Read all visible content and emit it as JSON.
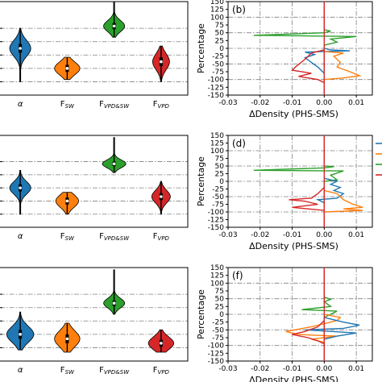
{
  "colors": {
    "blue": "#1f77b4",
    "orange": "#ff7f0e",
    "green": "#2ca02c",
    "red": "#d62728"
  },
  "chart_data": [
    {
      "type": "violin",
      "panel": "a",
      "categories": [
        {
          "main": "α",
          "sub": ""
        },
        {
          "main": "F",
          "sub": "SW"
        },
        {
          "main": "F",
          "sub": "VPD&SW"
        },
        {
          "main": "F",
          "sub": "VPD"
        }
      ],
      "series": [
        {
          "median": -0.15,
          "q1": -0.25,
          "q3": -0.05,
          "min": -0.9,
          "max": 0.3,
          "width": 0.25
        },
        {
          "median": -0.6,
          "q1": -0.68,
          "q3": -0.52,
          "min": -0.85,
          "max": -0.35,
          "width": 0.3
        },
        {
          "median": 0.35,
          "q1": 0.28,
          "q3": 0.42,
          "min": 0.1,
          "max": 0.9,
          "width": 0.25
        },
        {
          "median": -0.45,
          "q1": -0.55,
          "q3": -0.35,
          "min": -0.9,
          "max": -0.1,
          "width": 0.2
        }
      ],
      "ylim": [
        -1.2,
        0.9
      ],
      "grid_y": [
        -0.9,
        -0.6,
        -0.3,
        0,
        0.3
      ]
    },
    {
      "type": "line",
      "panel": "b",
      "label": "(b)",
      "xlabel": "ΔDensity (PHS-SMS)",
      "ylabel": "Percentage",
      "xlim": [
        -0.03,
        0.015
      ],
      "ylim": [
        -150,
        150
      ],
      "xticks": [
        "-0.03",
        "-0.02",
        "-0.01",
        "0.00",
        "0.01"
      ],
      "yticks": [
        "150",
        "125",
        "100",
        "75",
        "50",
        "25",
        "0",
        "-25",
        "-50",
        "-75",
        "-100",
        "-125",
        "-150"
      ],
      "series": [
        {
          "color": "green",
          "points": [
            [
              0,
              150
            ],
            [
              0,
              60
            ],
            [
              0.002,
              55
            ],
            [
              0,
              50
            ],
            [
              -0.022,
              42
            ],
            [
              0.01,
              38
            ],
            [
              0.002,
              30
            ],
            [
              0.004,
              20
            ],
            [
              0,
              10
            ],
            [
              0,
              -150
            ]
          ]
        },
        {
          "color": "blue",
          "points": [
            [
              0,
              0
            ],
            [
              0.002,
              -5
            ],
            [
              0.008,
              -8
            ],
            [
              -0.006,
              -12
            ],
            [
              -0.003,
              -20
            ],
            [
              -0.006,
              -30
            ],
            [
              -0.004,
              -45
            ],
            [
              -0.002,
              -60
            ],
            [
              0,
              -80
            ]
          ]
        },
        {
          "color": "orange",
          "points": [
            [
              0,
              -10
            ],
            [
              0.006,
              -15
            ],
            [
              0.003,
              -25
            ],
            [
              0.005,
              -45
            ],
            [
              0.004,
              -60
            ],
            [
              0.008,
              -75
            ],
            [
              0.011,
              -88
            ],
            [
              0.006,
              -95
            ],
            [
              0,
              -100
            ]
          ]
        },
        {
          "color": "red",
          "points": [
            [
              0,
              -5
            ],
            [
              -0.004,
              -15
            ],
            [
              -0.006,
              -35
            ],
            [
              -0.009,
              -60
            ],
            [
              -0.01,
              -70
            ],
            [
              -0.004,
              -80
            ],
            [
              -0.008,
              -90
            ],
            [
              -0.002,
              -100
            ],
            [
              0,
              -110
            ]
          ]
        },
        {
          "color": "red",
          "points": [
            [
              0,
              150
            ],
            [
              0,
              -150
            ]
          ]
        }
      ]
    },
    {
      "type": "violin",
      "panel": "c",
      "categories": [
        {
          "main": "α",
          "sub": ""
        },
        {
          "main": "F",
          "sub": "SW"
        },
        {
          "main": "F",
          "sub": "VPD&SW"
        },
        {
          "main": "F",
          "sub": "VPD"
        }
      ],
      "series": [
        {
          "median": -0.3,
          "q1": -0.38,
          "q3": -0.22,
          "min": -0.9,
          "max": 0.1,
          "width": 0.25
        },
        {
          "median": -0.6,
          "q1": -0.68,
          "q3": -0.52,
          "min": -0.9,
          "max": -0.4,
          "width": 0.27
        },
        {
          "median": 0.25,
          "q1": 0.2,
          "q3": 0.3,
          "min": 0.05,
          "max": 0.85,
          "width": 0.28
        },
        {
          "median": -0.5,
          "q1": -0.58,
          "q3": -0.42,
          "min": -0.9,
          "max": -0.15,
          "width": 0.22
        }
      ],
      "ylim": [
        -1.2,
        0.9
      ],
      "grid_y": [
        -0.9,
        -0.6,
        -0.3,
        0,
        0.3
      ]
    },
    {
      "type": "line",
      "panel": "d",
      "label": "(d)",
      "xlabel": "ΔDensity (PHS-SMS)",
      "ylabel": "Percentage",
      "xlim": [
        -0.03,
        0.015
      ],
      "ylim": [
        -150,
        150
      ],
      "xticks": [
        "-0.03",
        "-0.02",
        "-0.01",
        "0.00",
        "0.01"
      ],
      "yticks": [
        "150",
        "125",
        "100",
        "75",
        "50",
        "25",
        "0",
        "-25",
        "-50",
        "-75",
        "-100",
        "-125",
        "-150"
      ],
      "series": [
        {
          "color": "green",
          "points": [
            [
              0,
              150
            ],
            [
              0,
              50
            ],
            [
              0.003,
              48
            ],
            [
              0,
              44
            ],
            [
              -0.022,
              36
            ],
            [
              0.006,
              34
            ],
            [
              0.002,
              20
            ],
            [
              0.004,
              5
            ],
            [
              0,
              0
            ],
            [
              0,
              -150
            ]
          ]
        },
        {
          "color": "blue",
          "points": [
            [
              0,
              10
            ],
            [
              0.004,
              0
            ],
            [
              0.002,
              -10
            ],
            [
              0.005,
              -20
            ],
            [
              0.003,
              -30
            ],
            [
              0.006,
              -40
            ],
            [
              0.004,
              -55
            ],
            [
              -0.002,
              -60
            ],
            [
              0,
              -70
            ]
          ]
        },
        {
          "color": "orange",
          "points": [
            [
              0,
              -30
            ],
            [
              0.004,
              -40
            ],
            [
              0.006,
              -60
            ],
            [
              0.009,
              -75
            ],
            [
              0.012,
              -85
            ],
            [
              0.006,
              -90
            ],
            [
              0.012,
              -95
            ],
            [
              0,
              -100
            ]
          ]
        },
        {
          "color": "red",
          "points": [
            [
              0,
              -20
            ],
            [
              -0.002,
              -40
            ],
            [
              -0.004,
              -55
            ],
            [
              -0.011,
              -60
            ],
            [
              -0.006,
              -65
            ],
            [
              -0.002,
              -75
            ],
            [
              -0.01,
              -85
            ],
            [
              0,
              -95
            ]
          ]
        },
        {
          "color": "red",
          "points": [
            [
              0,
              150
            ],
            [
              0,
              -150
            ]
          ]
        }
      ],
      "legend": "right"
    },
    {
      "type": "violin",
      "panel": "e",
      "categories": [
        {
          "main": "α",
          "sub": ""
        },
        {
          "main": "F",
          "sub": "SW"
        },
        {
          "main": "F",
          "sub": "VPD&SW"
        },
        {
          "main": "F",
          "sub": "VPD"
        }
      ],
      "series": [
        {
          "median": -0.6,
          "q1": -0.7,
          "q3": -0.5,
          "min": -0.95,
          "max": -0.1,
          "width": 0.32
        },
        {
          "median": -0.7,
          "q1": -0.8,
          "q3": -0.6,
          "min": -1.0,
          "max": -0.35,
          "width": 0.3
        },
        {
          "median": 0.1,
          "q1": 0.04,
          "q3": 0.16,
          "min": -0.15,
          "max": 0.85,
          "width": 0.25
        },
        {
          "median": -0.8,
          "q1": -0.88,
          "q3": -0.72,
          "min": -1.0,
          "max": -0.5,
          "width": 0.3
        }
      ],
      "ylim": [
        -1.2,
        0.9
      ],
      "grid_y": [
        -0.9,
        -0.6,
        -0.3,
        0,
        0.3
      ]
    },
    {
      "type": "line",
      "panel": "f",
      "label": "(f)",
      "xlabel": "ΔDensity (PHS-SMS)",
      "ylabel": "Percentage",
      "xlim": [
        -0.03,
        0.015
      ],
      "ylim": [
        -150,
        150
      ],
      "xticks": [
        "-0.03",
        "-0.02",
        "-0.01",
        "0.00",
        "0.01"
      ],
      "yticks": [
        "150",
        "125",
        "100",
        "75",
        "50",
        "25",
        "0",
        "-25",
        "-50",
        "-75",
        "-100",
        "-125",
        "-150"
      ],
      "series": [
        {
          "color": "green",
          "points": [
            [
              0,
              150
            ],
            [
              0,
              55
            ],
            [
              0.002,
              48
            ],
            [
              0,
              40
            ],
            [
              0.002,
              25
            ],
            [
              -0.007,
              15
            ],
            [
              0.004,
              10
            ],
            [
              0.002,
              0
            ],
            [
              0,
              -10
            ],
            [
              0,
              -150
            ]
          ]
        },
        {
          "color": "orange",
          "points": [
            [
              0,
              0
            ],
            [
              0.005,
              -10
            ],
            [
              0.004,
              -20
            ],
            [
              -0.004,
              -40
            ],
            [
              -0.012,
              -55
            ],
            [
              -0.008,
              -65
            ],
            [
              0.004,
              -70
            ],
            [
              -0.004,
              -80
            ],
            [
              0,
              -90
            ]
          ]
        },
        {
          "color": "blue",
          "points": [
            [
              0,
              -10
            ],
            [
              0.006,
              -25
            ],
            [
              0.011,
              -35
            ],
            [
              0.006,
              -45
            ],
            [
              -0.006,
              -50
            ],
            [
              0.01,
              -60
            ],
            [
              0.004,
              -70
            ],
            [
              0,
              -80
            ]
          ]
        },
        {
          "color": "red",
          "points": [
            [
              0,
              -20
            ],
            [
              -0.002,
              -40
            ],
            [
              -0.006,
              -55
            ],
            [
              -0.01,
              -65
            ],
            [
              -0.005,
              -75
            ],
            [
              -0.002,
              -85
            ],
            [
              0,
              -95
            ]
          ]
        },
        {
          "color": "red",
          "points": [
            [
              0,
              150
            ],
            [
              0,
              -150
            ]
          ]
        }
      ]
    }
  ]
}
